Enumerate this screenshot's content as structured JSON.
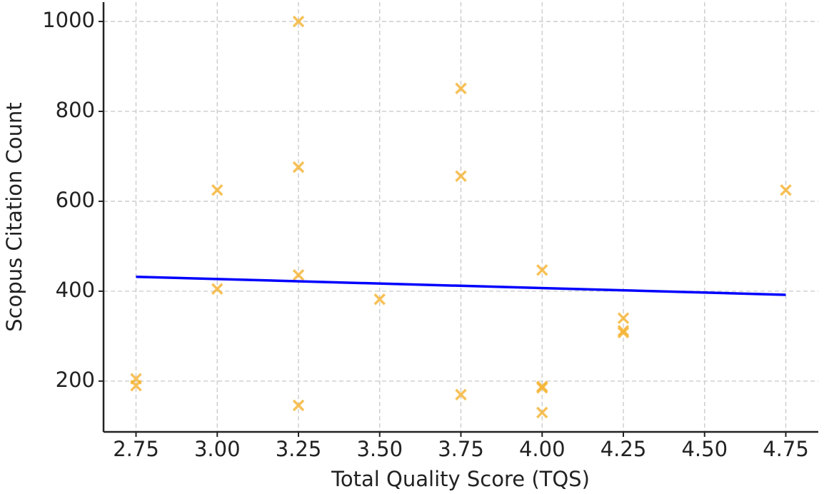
{
  "chart_data": {
    "type": "scatter",
    "x_label": "Total Quality Score (TQS)",
    "y_label": "Scopus Citation Count",
    "xlim": [
      2.65,
      4.85
    ],
    "ylim": [
      87,
      1043
    ],
    "xticks": [
      2.75,
      {
        "value": 3,
        "label": "3.00"
      },
      3.25,
      {
        "value": 3.5,
        "label": "3.50"
      },
      3.75,
      {
        "value": 4,
        "label": "4.00"
      },
      4.25,
      {
        "value": 4.5,
        "label": "4.50"
      },
      4.75
    ],
    "yticks": [
      200,
      400,
      600,
      800,
      1000
    ],
    "grid": true,
    "series": [
      {
        "type": "scatter",
        "color": "#f5b12e",
        "x": [
          2.75,
          2.75,
          3.0,
          3.0,
          3.25,
          3.25,
          3.25,
          3.25,
          3.5,
          3.75,
          3.75,
          3.75,
          4.0,
          4.0,
          4.0,
          4.0,
          4.25,
          4.25,
          4.25,
          4.75
        ],
        "values": [
          205,
          190,
          625,
          405,
          1000,
          676,
          436,
          146,
          382,
          851,
          656,
          170,
          447,
          188,
          185,
          130,
          340,
          312,
          308,
          625
        ]
      },
      {
        "type": "line",
        "color": "#0000ff",
        "x": [
          2.75,
          4.75
        ],
        "values": [
          432,
          392
        ]
      }
    ]
  }
}
